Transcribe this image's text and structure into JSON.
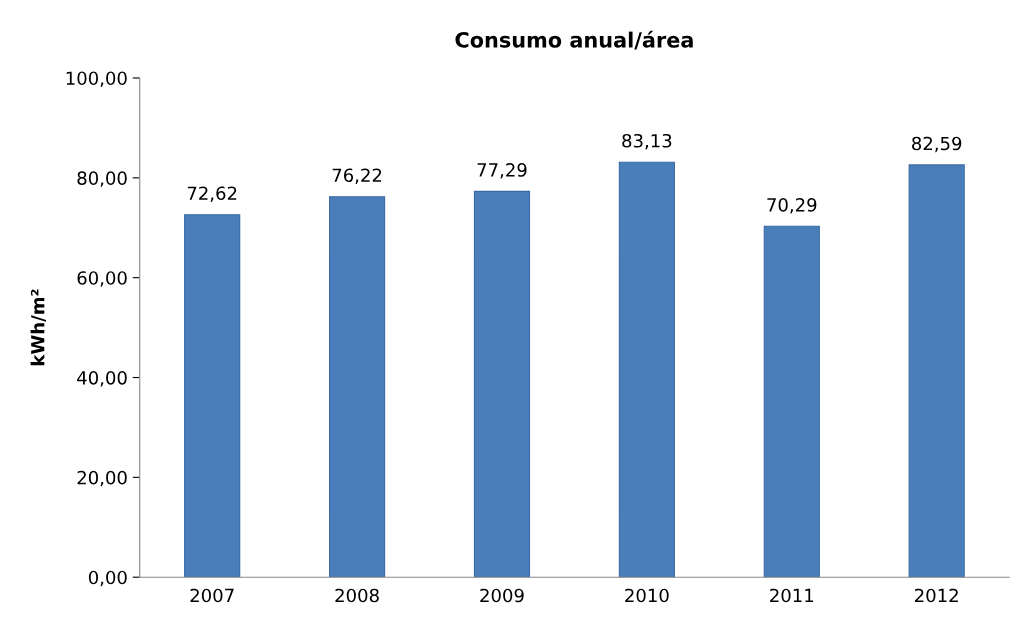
{
  "chart_data": {
    "type": "bar",
    "title": "Consumo anual/área",
    "ylabel": "kWh/m²",
    "categories": [
      "2007",
      "2008",
      "2009",
      "2010",
      "2011",
      "2012"
    ],
    "values": [
      72.62,
      76.22,
      77.29,
      83.13,
      70.29,
      82.59
    ],
    "value_labels": [
      "72,62",
      "76,22",
      "77,29",
      "83,13",
      "70,29",
      "82,59"
    ],
    "color": "#4a7ebb",
    "ylim": [
      0,
      100
    ],
    "yticks": [
      {
        "value": 0,
        "label": "0,00"
      },
      {
        "value": 20,
        "label": "20,00"
      },
      {
        "value": 40,
        "label": "40,00"
      },
      {
        "value": 60,
        "label": "60,00"
      },
      {
        "value": 80,
        "label": "80,00"
      },
      {
        "value": 100,
        "label": "100,00"
      }
    ],
    "grid": false,
    "legend": false
  }
}
